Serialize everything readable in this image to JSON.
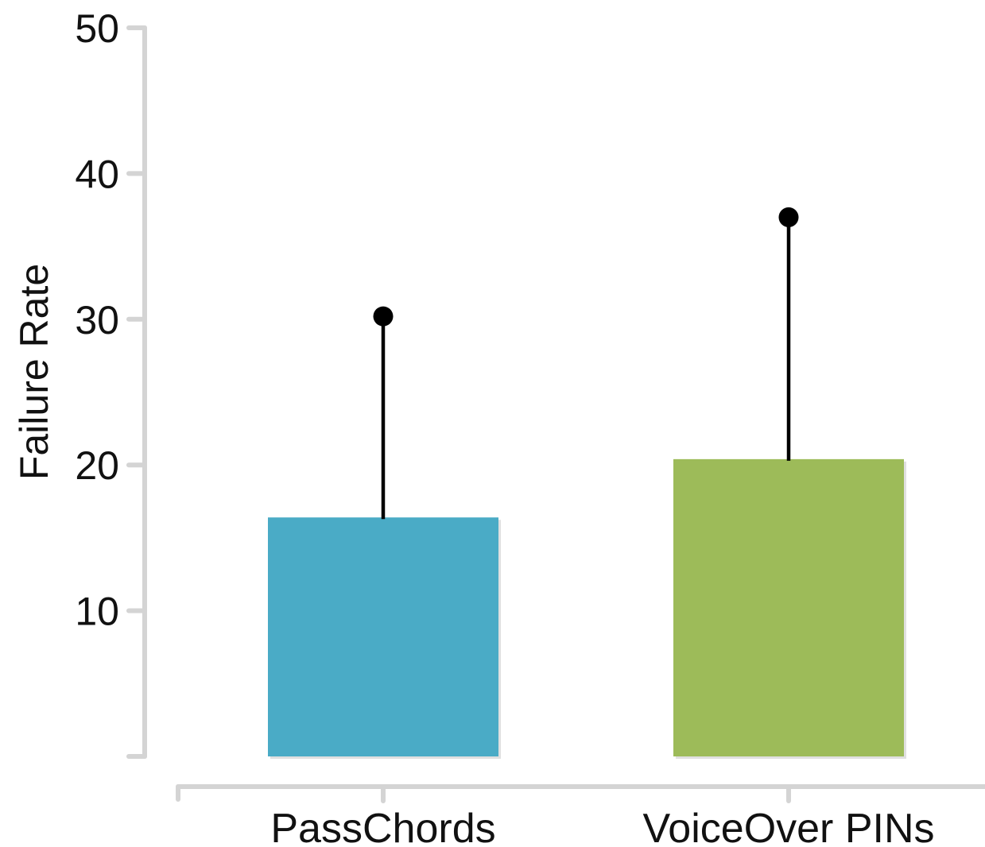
{
  "chart_data": {
    "type": "bar",
    "title": "",
    "xlabel": "",
    "ylabel": "Failure Rate",
    "categories": [
      "PassChords",
      "VoiceOver PINs"
    ],
    "values": [
      16.4,
      20.4
    ],
    "error_upper": [
      30.2,
      37.0
    ],
    "ylim": [
      0,
      50
    ],
    "yticks": [
      10,
      20,
      30,
      40,
      50
    ],
    "colors": [
      "#4aabc6",
      "#9dbb59"
    ],
    "grid": false,
    "legend": "none"
  }
}
